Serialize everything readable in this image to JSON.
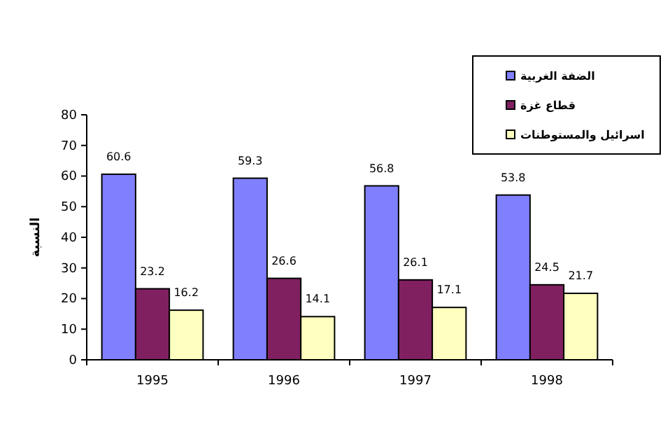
{
  "chart_data": {
    "type": "bar",
    "ylabel": "النسبة",
    "categories": [
      "1995",
      "1996",
      "1997",
      "1998"
    ],
    "series": [
      {
        "name": "الضفة الغربية",
        "color": "#8080ff",
        "values": [
          60.6,
          59.3,
          56.8,
          53.8
        ]
      },
      {
        "name": "قطاع غزة",
        "color": "#802060",
        "values": [
          23.2,
          26.6,
          26.1,
          24.5
        ]
      },
      {
        "name": "اسرائيل والمستوطنات",
        "color": "#ffffc0",
        "values": [
          16.2,
          14.1,
          17.1,
          21.7
        ]
      }
    ],
    "ylim": [
      0,
      80
    ],
    "yticks": [
      0,
      10,
      20,
      30,
      40,
      50,
      60,
      70,
      80
    ],
    "data_labels": true,
    "legend": "top right",
    "grid": false
  }
}
